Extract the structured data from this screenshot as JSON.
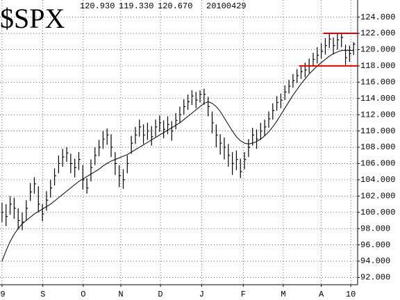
{
  "chart_data": {
    "type": "hlc",
    "title": "$SPX",
    "header_values": [
      "120.930",
      "119.330",
      "120.670"
    ],
    "date": "20100429",
    "color": "#000000",
    "high": [
      101.2,
      101.0,
      102.0,
      101.8,
      100.5,
      100.0,
      101.5,
      103.6,
      104.3,
      103.2,
      101.0,
      102.6,
      104.0,
      105.4,
      107.0,
      107.8,
      108.0,
      107.2,
      106.6,
      107.4,
      105.8,
      104.2,
      106.5,
      108.0,
      108.9,
      110.0,
      110.3,
      109.6,
      107.4,
      105.8,
      105.3,
      107.0,
      109.4,
      110.5,
      111.4,
      110.8,
      111.0,
      110.6,
      111.4,
      111.9,
      111.3,
      111.8,
      111.2,
      112.2,
      113.0,
      113.9,
      114.5,
      115.0,
      114.8,
      115.0,
      115.2,
      114.2,
      112.4,
      110.8,
      109.6,
      109.2,
      108.4,
      107.4,
      107.6,
      106.6,
      107.4,
      109.0,
      110.4,
      110.2,
      111.0,
      111.4,
      112.4,
      113.4,
      114.3,
      114.6,
      115.6,
      116.3,
      117.0,
      117.6,
      118.0,
      118.4,
      118.9,
      119.6,
      120.3,
      120.8,
      121.4,
      122.0,
      121.5,
      122.0,
      121.9,
      120.6,
      120.5,
      120.93
    ],
    "low": [
      98.8,
      98.3,
      99.7,
      99.2,
      97.9,
      97.8,
      99.0,
      101.4,
      102.3,
      100.0,
      98.9,
      100.2,
      101.8,
      103.3,
      104.8,
      105.6,
      106.2,
      104.8,
      104.3,
      105.2,
      102.8,
      102.3,
      103.8,
      105.8,
      106.9,
      107.8,
      108.3,
      106.8,
      104.6,
      103.1,
      102.9,
      104.8,
      107.2,
      108.4,
      109.3,
      108.4,
      108.9,
      108.2,
      109.3,
      109.9,
      109.1,
      109.6,
      108.8,
      110.2,
      111.0,
      112.0,
      112.6,
      113.2,
      112.8,
      113.5,
      113.2,
      111.8,
      109.7,
      108.0,
      107.1,
      106.5,
      105.6,
      104.6,
      105.2,
      104.2,
      105.3,
      106.8,
      108.2,
      107.8,
      108.9,
      109.4,
      110.4,
      111.4,
      112.5,
      112.8,
      113.8,
      114.6,
      115.3,
      115.9,
      116.4,
      116.6,
      117.1,
      117.9,
      118.3,
      118.9,
      119.4,
      120.2,
      119.4,
      120.0,
      120.3,
      118.1,
      118.5,
      119.33
    ],
    "close": [
      100.0,
      99.5,
      101.0,
      100.5,
      99.0,
      98.8,
      100.5,
      102.5,
      103.5,
      101.0,
      99.8,
      101.5,
      103.0,
      104.5,
      106.0,
      106.8,
      107.3,
      106.0,
      105.5,
      106.5,
      104.0,
      103.0,
      105.5,
      107.0,
      108.0,
      109.0,
      109.5,
      108.0,
      106.0,
      104.5,
      104.0,
      106.0,
      108.5,
      109.5,
      110.5,
      109.5,
      110.0,
      109.3,
      110.5,
      111.0,
      110.2,
      110.8,
      110.0,
      111.3,
      112.0,
      113.0,
      113.6,
      114.3,
      113.8,
      114.5,
      114.5,
      113.0,
      111.0,
      109.5,
      108.5,
      108.0,
      107.0,
      106.0,
      106.5,
      105.0,
      106.5,
      108.0,
      109.5,
      109.0,
      110.0,
      110.5,
      111.5,
      112.5,
      113.5,
      113.8,
      114.8,
      115.5,
      116.2,
      116.8,
      117.3,
      117.5,
      118.0,
      118.8,
      119.3,
      119.8,
      120.5,
      121.3,
      120.5,
      121.2,
      121.5,
      119.0,
      119.5,
      120.67
    ],
    "moving_average": {
      "color": "#000000",
      "values": [
        94.0,
        95.3,
        96.4,
        97.3,
        98.0,
        98.6,
        99.0,
        99.4,
        99.8,
        100.1,
        100.4,
        100.7,
        101.0,
        101.4,
        101.8,
        102.2,
        102.6,
        103.0,
        103.4,
        103.8,
        104.1,
        104.4,
        104.7,
        105.0,
        105.3,
        105.7,
        106.0,
        106.3,
        106.5,
        106.7,
        106.9,
        107.1,
        107.4,
        107.7,
        108.0,
        108.3,
        108.6,
        108.9,
        109.2,
        109.5,
        109.8,
        110.1,
        110.4,
        110.7,
        111.0,
        111.4,
        111.8,
        112.2,
        112.6,
        113.0,
        113.4,
        113.6,
        113.4,
        113.0,
        112.4,
        111.6,
        110.8,
        110.0,
        109.3,
        108.8,
        108.5,
        108.4,
        108.5,
        108.7,
        109.0,
        109.4,
        109.9,
        110.5,
        111.2,
        112.0,
        112.8,
        113.6,
        114.4,
        115.1,
        115.8,
        116.4,
        117.0,
        117.5,
        118.0,
        118.4,
        118.8,
        119.2,
        119.5,
        119.7,
        119.9,
        119.9,
        119.9,
        119.9
      ]
    },
    "reference_lines": [
      {
        "y": 122,
        "x": [
          79.5,
          88
        ],
        "color": "#e00000"
      },
      {
        "y": 118,
        "x": [
          73.5,
          88
        ],
        "color": "#e00000"
      }
    ],
    "xlim": [
      -0.5,
      88
    ],
    "xticks": [
      {
        "value": 0,
        "label": "9"
      },
      {
        "value": 10.1,
        "label": "S"
      },
      {
        "value": 20.1,
        "label": "O"
      },
      {
        "value": 29.4,
        "label": "N"
      },
      {
        "value": 39.2,
        "label": "D"
      },
      {
        "value": 49.4,
        "label": "J"
      },
      {
        "value": 59.7,
        "label": "F"
      },
      {
        "value": 69.6,
        "label": "M"
      },
      {
        "value": 79,
        "label": "A"
      },
      {
        "value": 86.3,
        "label": "10"
      }
    ],
    "ylim": [
      91.1,
      126.1
    ],
    "yticks": [
      {
        "value": 92,
        "label": "92.000"
      },
      {
        "value": 94,
        "label": "94.000"
      },
      {
        "value": 96,
        "label": "96.000"
      },
      {
        "value": 98,
        "label": "98.000"
      },
      {
        "value": 100,
        "label": "100.000"
      },
      {
        "value": 102,
        "label": "102.000"
      },
      {
        "value": 104,
        "label": "104.000"
      },
      {
        "value": 106,
        "label": "106.000"
      },
      {
        "value": 108,
        "label": "108.000"
      },
      {
        "value": 110,
        "label": "110.000"
      },
      {
        "value": 112,
        "label": "112.000"
      },
      {
        "value": 114,
        "label": "114.000"
      },
      {
        "value": 116,
        "label": "116.000"
      },
      {
        "value": 118,
        "label": "118.000"
      },
      {
        "value": 120,
        "label": "120.000"
      },
      {
        "value": 122,
        "label": "122.000"
      },
      {
        "value": 124,
        "label": "124.000"
      }
    ],
    "grid": true
  }
}
